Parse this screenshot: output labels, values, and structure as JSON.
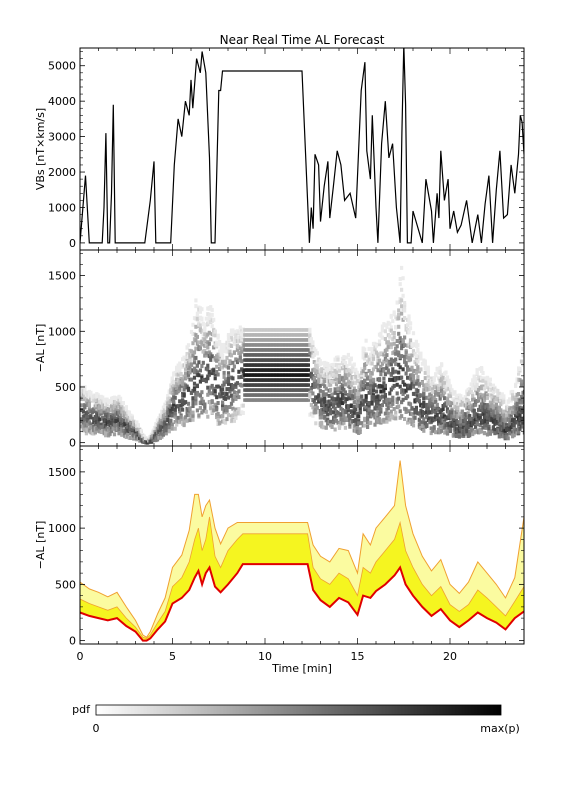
{
  "title": "Near Real Time AL Forecast",
  "chart_data": [
    {
      "type": "line",
      "name": "vbs-panel",
      "ylabel": "VBs [nT×km/s]",
      "ylim": [
        -200,
        5500
      ],
      "yticks": [
        0,
        1000,
        2000,
        3000,
        4000,
        5000
      ],
      "xlim": [
        0,
        24
      ],
      "x": [
        0.0,
        0.3,
        0.5,
        0.7,
        1.0,
        1.2,
        1.3,
        1.4,
        1.5,
        1.6,
        1.7,
        1.8,
        1.9,
        2.0,
        3.0,
        3.5,
        3.8,
        4.0,
        4.1,
        4.3,
        4.5,
        4.9,
        5.1,
        5.3,
        5.5,
        5.7,
        5.9,
        6.0,
        6.1,
        6.3,
        6.5,
        6.6,
        6.8,
        7.0,
        7.1,
        7.3,
        7.5,
        7.6,
        7.7,
        8.0,
        8.5,
        9.0,
        10.0,
        11.0,
        12.0,
        12.4,
        12.5,
        12.6,
        12.7,
        12.9,
        13.0,
        13.2,
        13.4,
        13.5,
        13.7,
        13.9,
        14.1,
        14.3,
        14.6,
        14.9,
        15.2,
        15.4,
        15.5,
        15.7,
        15.8,
        16.0,
        16.1,
        16.3,
        16.5,
        16.7,
        16.9,
        17.1,
        17.3,
        17.4,
        17.5,
        17.6,
        17.7,
        17.9,
        18.0,
        18.5,
        18.7,
        19.0,
        19.1,
        19.3,
        19.4,
        19.5,
        19.7,
        19.9,
        20.0,
        20.2,
        20.4,
        20.6,
        20.9,
        21.2,
        21.5,
        21.7,
        21.9,
        22.1,
        22.3,
        22.5,
        22.7,
        22.9,
        23.1,
        23.3,
        23.5,
        23.7,
        23.8,
        23.9,
        24.0
      ],
      "y": [
        0,
        1900,
        0,
        0,
        0,
        0,
        1000,
        3100,
        0,
        0,
        1400,
        3900,
        0,
        0,
        0,
        0,
        1200,
        2300,
        0,
        0,
        0,
        0,
        2200,
        3500,
        3000,
        4000,
        3600,
        4600,
        3800,
        5200,
        4800,
        5400,
        4800,
        2400,
        0,
        0,
        4300,
        4300,
        4850,
        4850,
        4850,
        4850,
        4850,
        4850,
        4850,
        0,
        1000,
        400,
        2500,
        2200,
        600,
        1600,
        2300,
        700,
        1600,
        2600,
        2200,
        1200,
        1400,
        700,
        4300,
        5100,
        2600,
        1800,
        3600,
        1000,
        0,
        2800,
        4000,
        2400,
        2800,
        1000,
        0,
        3100,
        5600,
        3900,
        0,
        0,
        900,
        0,
        1800,
        900,
        0,
        1400,
        700,
        2600,
        1200,
        1800,
        400,
        900,
        300,
        500,
        1200,
        0,
        800,
        0,
        1100,
        1900,
        0,
        1500,
        2600,
        700,
        800,
        2200,
        1400,
        2500,
        3600,
        3400,
        2500
      ]
    },
    {
      "type": "heatmap",
      "name": "pdf-panel",
      "ylabel": "−AL [nT]",
      "ylim": [
        -30,
        1730
      ],
      "yticks": [
        0,
        500,
        1000,
        1500
      ],
      "xlim": [
        0,
        24
      ]
    },
    {
      "type": "area",
      "name": "forecast-panel",
      "ylabel": "−AL [nT]",
      "xlabel": "Time [min]",
      "ylim": [
        -30,
        1730
      ],
      "yticks": [
        0,
        500,
        1000,
        1500
      ],
      "xlim": [
        0,
        24
      ],
      "xticks": [
        0,
        5,
        10,
        15,
        20
      ],
      "x": [
        0.0,
        0.5,
        1.0,
        1.5,
        2.0,
        2.5,
        3.0,
        3.4,
        3.6,
        3.8,
        4.2,
        4.6,
        5.0,
        5.5,
        5.9,
        6.2,
        6.4,
        6.6,
        6.8,
        7.0,
        7.3,
        7.6,
        8.0,
        8.5,
        8.8,
        9.5,
        10.5,
        11.5,
        12.3,
        12.6,
        13.0,
        13.5,
        14.0,
        14.5,
        15.0,
        15.3,
        15.7,
        16.0,
        16.5,
        17.0,
        17.3,
        17.6,
        18.0,
        18.5,
        19.0,
        19.5,
        20.0,
        20.5,
        21.0,
        21.5,
        22.0,
        22.5,
        23.0,
        23.5,
        24.0
      ],
      "series": [
        {
          "values": [
            250,
            220,
            200,
            180,
            200,
            130,
            80,
            0,
            0,
            20,
            100,
            170,
            330,
            380,
            450,
            560,
            620,
            500,
            600,
            650,
            480,
            430,
            500,
            600,
            680,
            680,
            680,
            680,
            680,
            450,
            360,
            300,
            380,
            340,
            230,
            400,
            380,
            440,
            500,
            580,
            650,
            500,
            400,
            300,
            220,
            280,
            180,
            120,
            180,
            250,
            200,
            160,
            100,
            200,
            260
          ]
        },
        {
          "values": [
            370,
            330,
            300,
            270,
            300,
            200,
            120,
            30,
            20,
            50,
            160,
            260,
            480,
            560,
            700,
            900,
            1000,
            800,
            900,
            1100,
            750,
            650,
            800,
            900,
            950,
            950,
            950,
            950,
            950,
            650,
            550,
            500,
            600,
            550,
            400,
            650,
            600,
            700,
            800,
            900,
            1050,
            800,
            650,
            500,
            400,
            480,
            320,
            260,
            320,
            450,
            380,
            300,
            220,
            350,
            480
          ]
        },
        {
          "values": [
            520,
            460,
            430,
            390,
            430,
            300,
            180,
            50,
            30,
            80,
            240,
            380,
            650,
            760,
            980,
            1300,
            1300,
            1100,
            1200,
            1250,
            1000,
            860,
            1000,
            1050,
            1050,
            1050,
            1050,
            1050,
            1050,
            850,
            750,
            700,
            820,
            800,
            600,
            950,
            850,
            1000,
            1100,
            1200,
            1600,
            1200,
            950,
            750,
            620,
            720,
            500,
            420,
            520,
            700,
            600,
            500,
            380,
            560,
            1100
          ]
        }
      ]
    }
  ],
  "colorbar": {
    "label": "pdf",
    "min_label": "0",
    "max_label": "max(p)"
  },
  "colors": {
    "median": "#e00000",
    "upper": "#f0a030",
    "band_inner": "#f5f520",
    "band_outer": "#fbfba0"
  }
}
